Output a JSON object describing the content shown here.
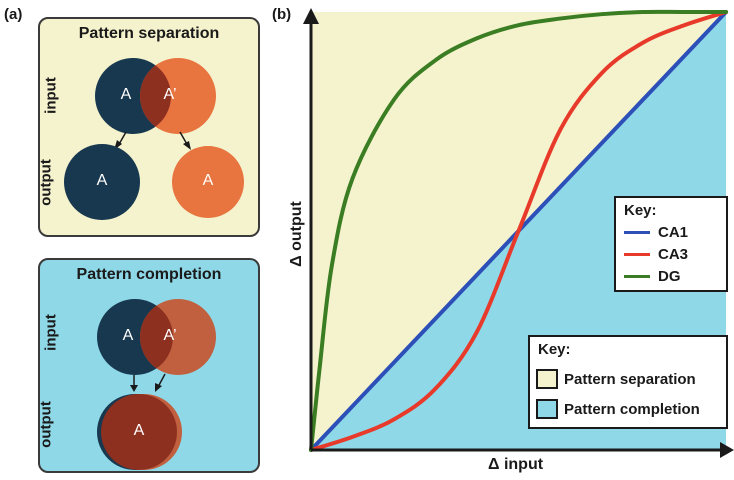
{
  "panel_a": {
    "letter": "(a)",
    "separation": {
      "title": "Pattern separation",
      "input_label": "input",
      "output_label": "output",
      "input_left": "A",
      "input_right": "A’",
      "output_left": "A",
      "output_right": "A"
    },
    "completion": {
      "title": "Pattern completion",
      "input_label": "input",
      "output_label": "output",
      "input_left": "A",
      "input_right": "A’",
      "output": "A"
    }
  },
  "panel_b": {
    "letter": "(b)",
    "xlabel": "Δ input",
    "ylabel": "Δ output",
    "line_key": {
      "title": "Key:",
      "items": [
        {
          "label": "CA1",
          "color": "#2d4fb8"
        },
        {
          "label": "CA3",
          "color": "#e83a2a"
        },
        {
          "label": "DG",
          "color": "#3a7d22"
        }
      ]
    },
    "region_key": {
      "title": "Key:",
      "items": [
        {
          "label": "Pattern separation",
          "color": "#f5f3cd"
        },
        {
          "label": "Pattern completion",
          "color": "#8fd8e8"
        }
      ]
    }
  },
  "colors": {
    "navy": "#17384f",
    "orange": "#e8743f",
    "dark_red": "#8e3020",
    "separation_bg": "#f5f3cd",
    "completion_bg": "#8fd8e8"
  },
  "chart_data": {
    "type": "line",
    "xlabel": "Δ input",
    "ylabel": "Δ output",
    "xlim": [
      0,
      1
    ],
    "ylim": [
      0,
      1
    ],
    "series": [
      {
        "name": "CA1",
        "x": [
          0,
          0.25,
          0.5,
          0.75,
          1
        ],
        "y": [
          0,
          0.25,
          0.5,
          0.75,
          1
        ]
      },
      {
        "name": "CA3",
        "x": [
          0,
          0.1,
          0.2,
          0.3,
          0.4,
          0.5,
          0.6,
          0.7,
          0.8,
          0.9,
          1
        ],
        "y": [
          0,
          0.03,
          0.07,
          0.14,
          0.27,
          0.5,
          0.73,
          0.86,
          0.93,
          0.97,
          1
        ]
      },
      {
        "name": "DG",
        "x": [
          0,
          0.02,
          0.05,
          0.1,
          0.2,
          0.3,
          0.4,
          0.5,
          0.6,
          0.7,
          0.8,
          0.9,
          1
        ],
        "y": [
          0,
          0.18,
          0.42,
          0.62,
          0.8,
          0.89,
          0.94,
          0.97,
          0.985,
          0.995,
          1,
          1.0,
          1
        ]
      }
    ],
    "regions": [
      {
        "name": "Pattern separation",
        "where": "above CA1 diagonal"
      },
      {
        "name": "Pattern completion",
        "where": "below CA1 diagonal"
      }
    ],
    "legend": "right"
  }
}
